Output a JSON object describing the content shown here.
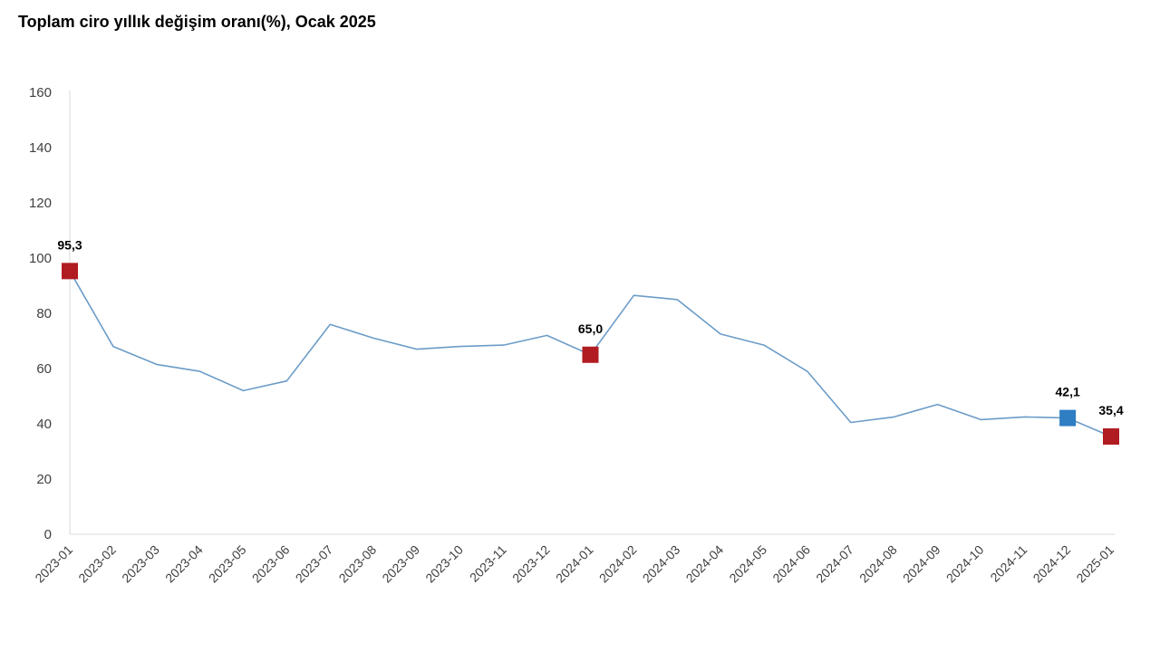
{
  "chart_data": {
    "type": "line",
    "title": "Toplam ciro yıllık değişim oranı(%), Ocak 2025",
    "xlabel": "",
    "ylabel": "",
    "ylim": [
      0,
      160
    ],
    "yticks": [
      "0",
      "20",
      "40",
      "60",
      "80",
      "100",
      "120",
      "140",
      "160"
    ],
    "categories": [
      "2023-01",
      "2023-02",
      "2023-03",
      "2023-04",
      "2023-05",
      "2023-06",
      "2023-07",
      "2023-08",
      "2023-09",
      "2023-10",
      "2023-11",
      "2023-12",
      "2024-01",
      "2024-02",
      "2024-03",
      "2024-04",
      "2024-05",
      "2024-06",
      "2024-07",
      "2024-08",
      "2024-09",
      "2024-10",
      "2024-11",
      "2024-12",
      "2025-01"
    ],
    "series": [
      {
        "values": [
          95.3,
          68.0,
          61.5,
          59.0,
          52.0,
          55.5,
          76.0,
          71.0,
          67.0,
          68.0,
          68.5,
          72.0,
          65.0,
          86.5,
          85.0,
          72.5,
          68.5,
          59.0,
          40.5,
          42.5,
          47.0,
          41.5,
          42.5,
          42.1,
          35.4
        ],
        "color": "#6c9cc8"
      }
    ],
    "highlights": [
      {
        "index": 0,
        "label": "95,3",
        "color": "#b01c22"
      },
      {
        "index": 12,
        "label": "65,0",
        "color": "#b01c22"
      },
      {
        "index": 23,
        "label": "42,1",
        "color": "#2f7dc3"
      },
      {
        "index": 24,
        "label": "35,4",
        "color": "#b01c22"
      }
    ],
    "grid": false,
    "legend": "none"
  }
}
